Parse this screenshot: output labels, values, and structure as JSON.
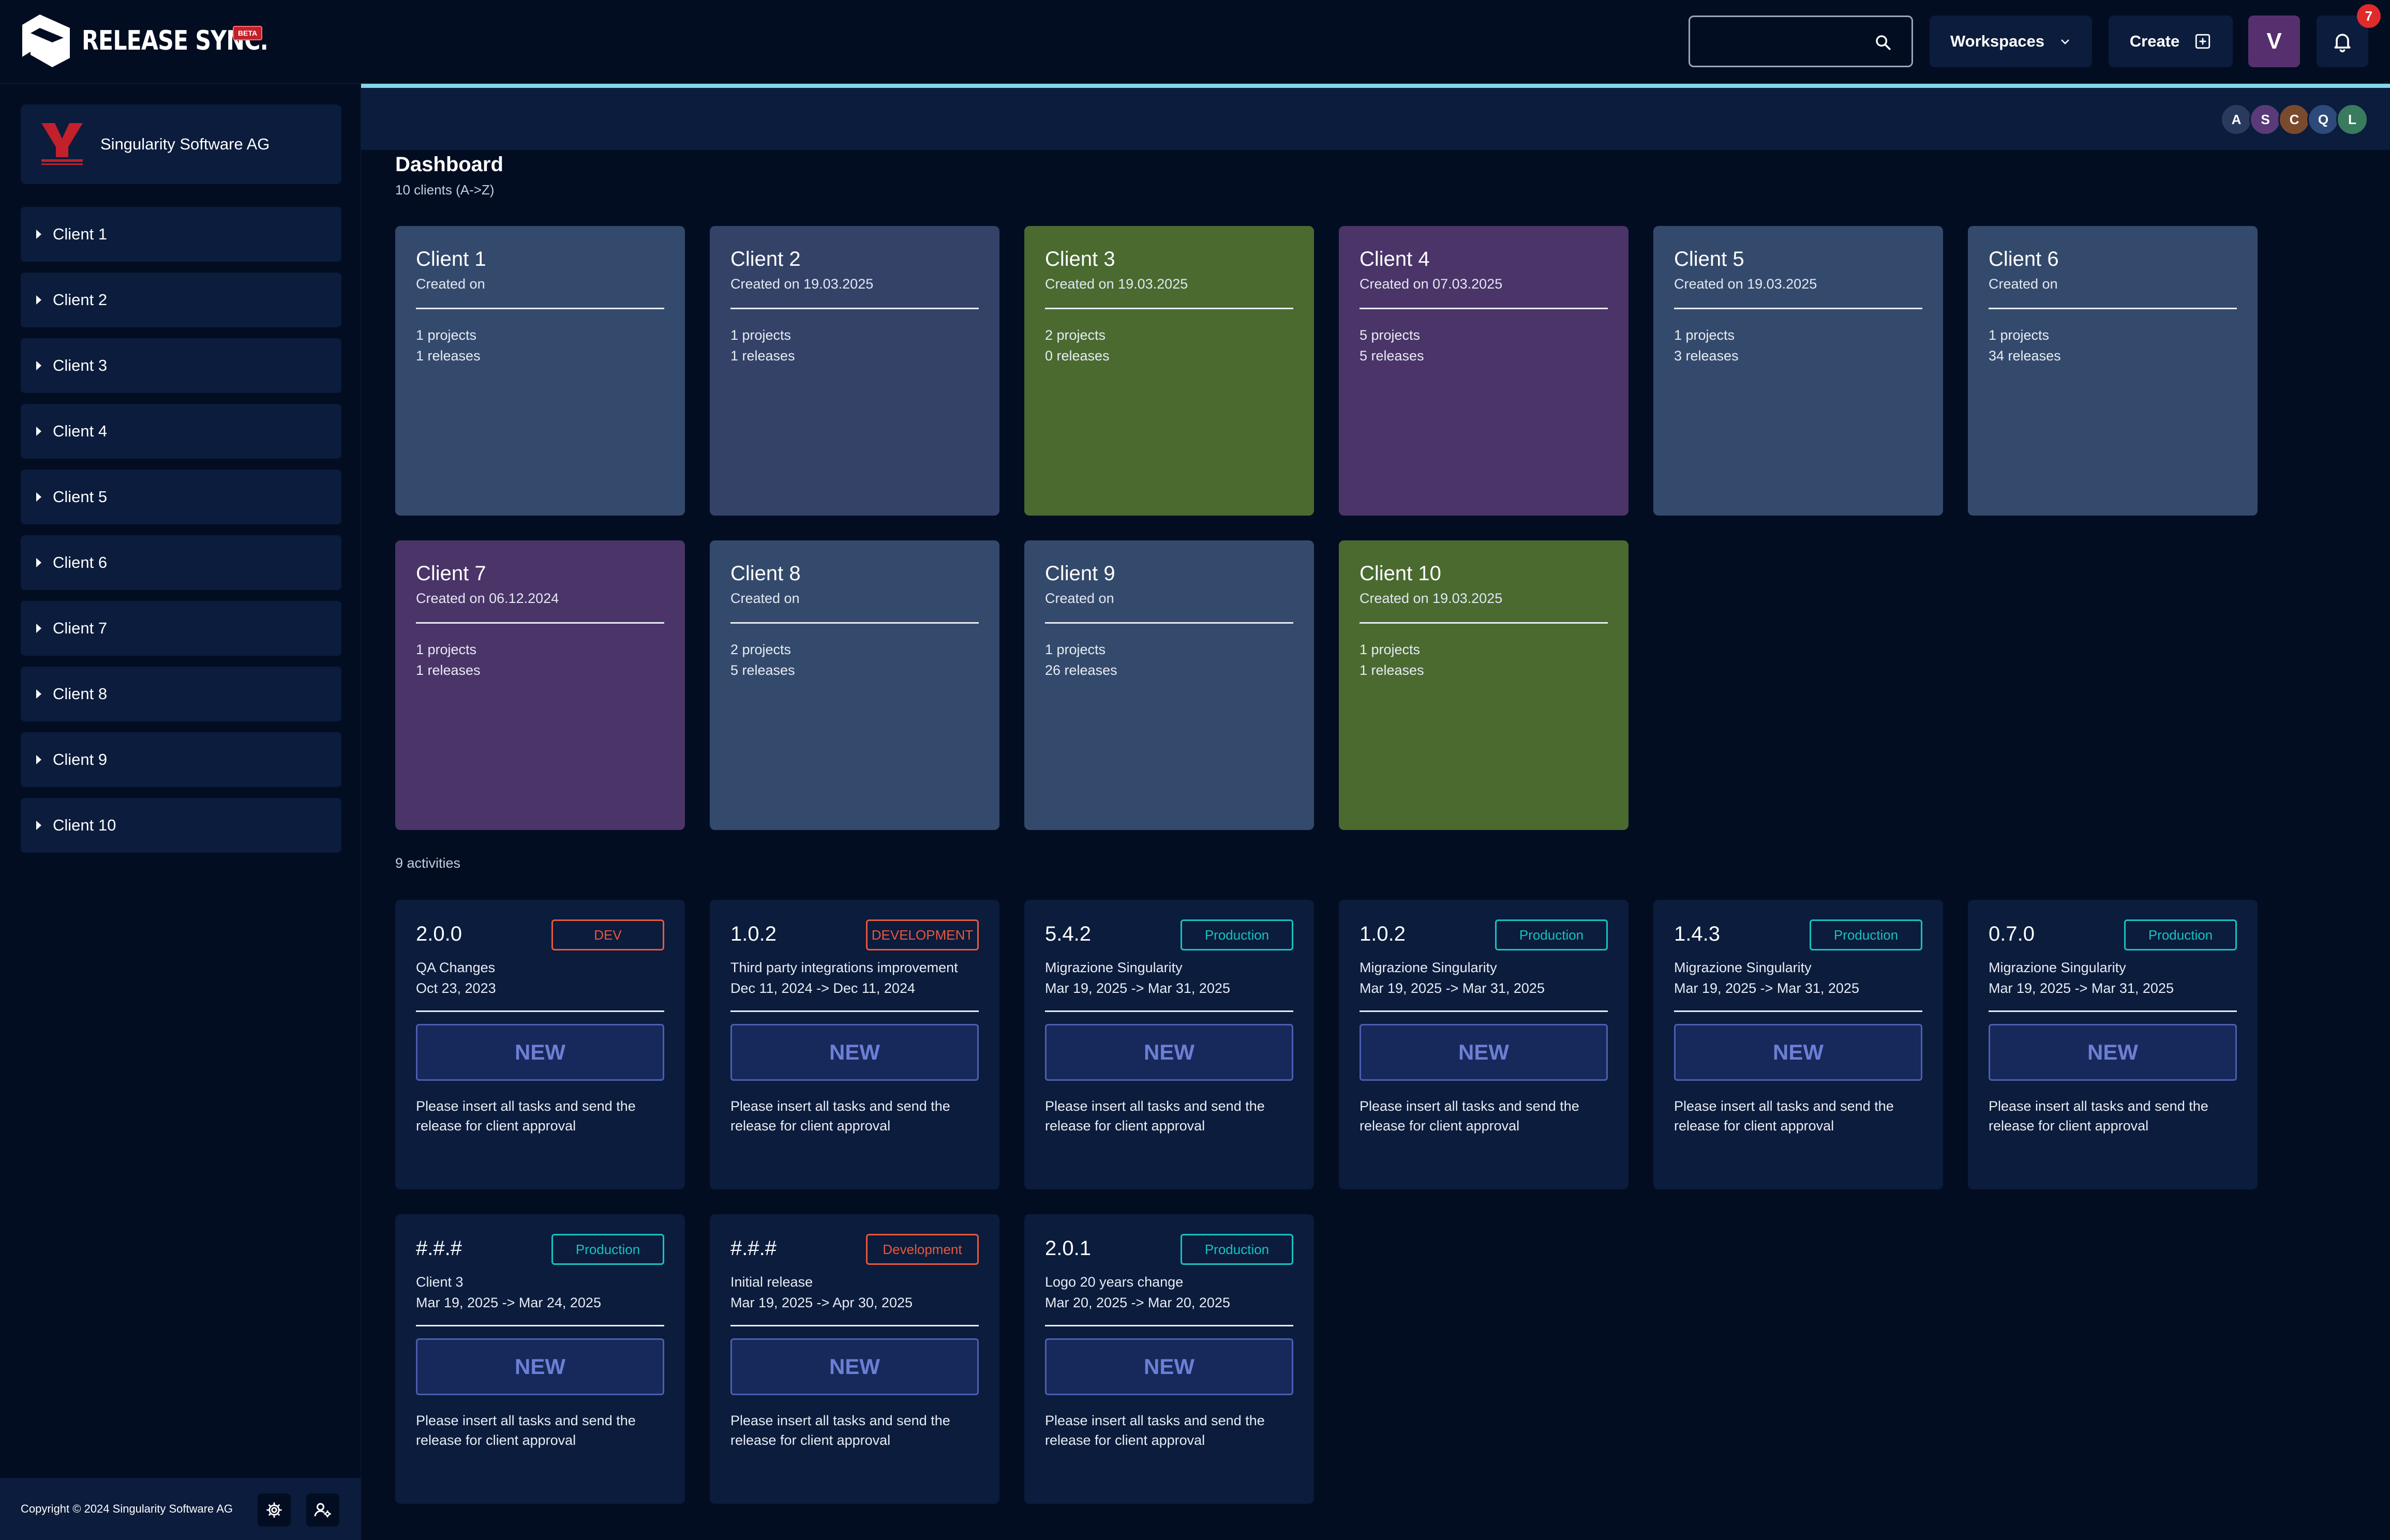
{
  "app": {
    "brand": "RELEASE SYNC.",
    "beta": "BETA"
  },
  "topbar": {
    "search_placeholder": "",
    "workspaces_label": "Workspaces",
    "create_label": "Create",
    "user_initial": "V",
    "notification_count": "7"
  },
  "sidebar": {
    "org_name": "Singularity Software AG",
    "items": [
      {
        "label": "Client 1"
      },
      {
        "label": "Client 2"
      },
      {
        "label": "Client 3"
      },
      {
        "label": "Client 4"
      },
      {
        "label": "Client 5"
      },
      {
        "label": "Client 6"
      },
      {
        "label": "Client 7"
      },
      {
        "label": "Client 8"
      },
      {
        "label": "Client 9"
      },
      {
        "label": "Client 10"
      }
    ],
    "copyright": "Copyright © 2024 Singularity Software AG"
  },
  "header": {
    "avatars": [
      {
        "initial": "A",
        "color": "#2a3a5e"
      },
      {
        "initial": "S",
        "color": "#5a3a78"
      },
      {
        "initial": "C",
        "color": "#7a4a2e"
      },
      {
        "initial": "Q",
        "color": "#2e4a7a"
      },
      {
        "initial": "L",
        "color": "#3a7a5e"
      }
    ]
  },
  "dashboard": {
    "title": "Dashboard",
    "subtitle": "10 clients (A->Z)",
    "clients": [
      {
        "name": "Client 1",
        "created": "Created on",
        "projects": "1 projects",
        "releases": "1 releases",
        "color": "#344a6c"
      },
      {
        "name": "Client 2",
        "created": "Created on 19.03.2025",
        "projects": "1 projects",
        "releases": "1 releases",
        "color": "#344268"
      },
      {
        "name": "Client 3",
        "created": "Created on 19.03.2025",
        "projects": "2 projects",
        "releases": "0 releases",
        "color": "#4a6a30"
      },
      {
        "name": "Client 4",
        "created": "Created on 07.03.2025",
        "projects": "5 projects",
        "releases": "5 releases",
        "color": "#4a3468"
      },
      {
        "name": "Client 5",
        "created": "Created on 19.03.2025",
        "projects": "1 projects",
        "releases": "3 releases",
        "color": "#344a6c"
      },
      {
        "name": "Client 6",
        "created": "Created on",
        "projects": "1 projects",
        "releases": "34 releases",
        "color": "#344a6c"
      },
      {
        "name": "Client 7",
        "created": "Created on 06.12.2024",
        "projects": "1 projects",
        "releases": "1 releases",
        "color": "#4a3468"
      },
      {
        "name": "Client 8",
        "created": "Created on",
        "projects": "2 projects",
        "releases": "5 releases",
        "color": "#344a6c"
      },
      {
        "name": "Client 9",
        "created": "Created on",
        "projects": "1 projects",
        "releases": "26 releases",
        "color": "#344a6c"
      },
      {
        "name": "Client 10",
        "created": "Created on 19.03.2025",
        "projects": "1 projects",
        "releases": "1 releases",
        "color": "#4a6a30"
      }
    ]
  },
  "activities": {
    "count_label": "9 activities",
    "items": [
      {
        "version": "2.0.0",
        "badge": "DEV",
        "badge_type": "dev",
        "desc": "QA Changes",
        "dates": "Oct 23, 2023",
        "status": "NEW",
        "note": "Please insert all tasks and send the release for client approval"
      },
      {
        "version": "1.0.2",
        "badge": "DEVELOPMENT",
        "badge_type": "dev",
        "desc": "Third party integrations improvement",
        "dates": "Dec 11, 2024 -> Dec 11, 2024",
        "status": "NEW",
        "note": "Please insert all tasks and send the release for client approval"
      },
      {
        "version": "5.4.2",
        "badge": "Production",
        "badge_type": "prod",
        "desc": "Migrazione Singularity",
        "dates": "Mar 19, 2025 -> Mar 31, 2025",
        "status": "NEW",
        "note": "Please insert all tasks and send the release for client approval"
      },
      {
        "version": "1.0.2",
        "badge": "Production",
        "badge_type": "prod",
        "desc": "Migrazione Singularity",
        "dates": "Mar 19, 2025 -> Mar 31, 2025",
        "status": "NEW",
        "note": "Please insert all tasks and send the release for client approval"
      },
      {
        "version": "1.4.3",
        "badge": "Production",
        "badge_type": "prod",
        "desc": "Migrazione Singularity",
        "dates": "Mar 19, 2025 -> Mar 31, 2025",
        "status": "NEW",
        "note": "Please insert all tasks and send the release for client approval"
      },
      {
        "version": "0.7.0",
        "badge": "Production",
        "badge_type": "prod",
        "desc": "Migrazione Singularity",
        "dates": "Mar 19, 2025 -> Mar 31, 2025",
        "status": "NEW",
        "note": "Please insert all tasks and send the release for client approval"
      },
      {
        "version": "#.#.#",
        "badge": "Production",
        "badge_type": "prod",
        "desc": "Client 3",
        "dates": "Mar 19, 2025 -> Mar 24, 2025",
        "status": "NEW",
        "note": "Please insert all tasks and send the release for client approval"
      },
      {
        "version": "#.#.#",
        "badge": "Development",
        "badge_type": "dev",
        "desc": "Initial release",
        "dates": "Mar 19, 2025 -> Apr 30, 2025",
        "status": "NEW",
        "note": "Please insert all tasks and send the release for client approval"
      },
      {
        "version": "2.0.1",
        "badge": "Production",
        "badge_type": "prod",
        "desc": "Logo 20 years change",
        "dates": "Mar 20, 2025 -> Mar 20, 2025",
        "status": "NEW",
        "note": "Please insert all tasks and send the release for client approval"
      }
    ]
  }
}
